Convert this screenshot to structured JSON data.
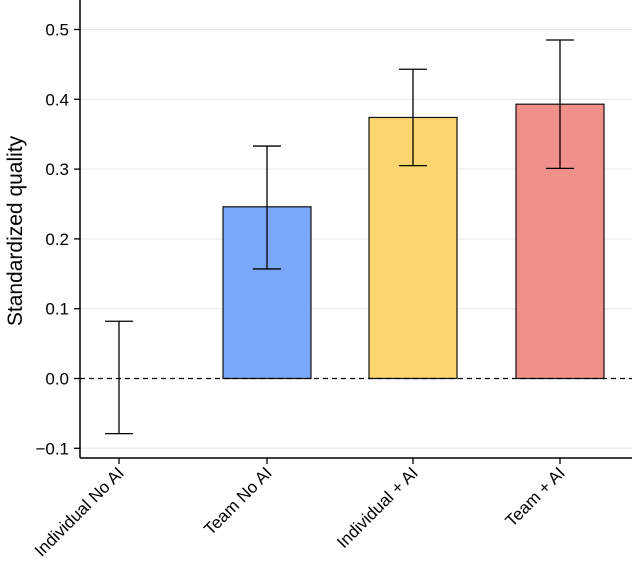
{
  "chart_data": {
    "type": "bar",
    "ylabel": "Standardized quality",
    "ylim": [
      -0.1,
      0.53
    ],
    "yticks": [
      -0.1,
      0.0,
      0.1,
      0.2,
      0.3,
      0.4,
      0.5
    ],
    "ytick_labels": [
      "−0.1",
      "0.0",
      "0.1",
      "0.2",
      "0.3",
      "0.4",
      "0.5"
    ],
    "grid": true,
    "zero_line": "dashed",
    "categories": [
      "Individual No AI",
      "Team No AI",
      "Individual + AI",
      "Team + AI"
    ],
    "values": [
      0.0,
      0.246,
      0.374,
      0.393
    ],
    "error_low": [
      -0.079,
      0.157,
      0.305,
      0.301
    ],
    "error_high": [
      0.082,
      0.333,
      0.443,
      0.485
    ],
    "colors": [
      "#ffffff",
      "#7aa7f7",
      "#fbd66f",
      "#f1908a"
    ]
  }
}
